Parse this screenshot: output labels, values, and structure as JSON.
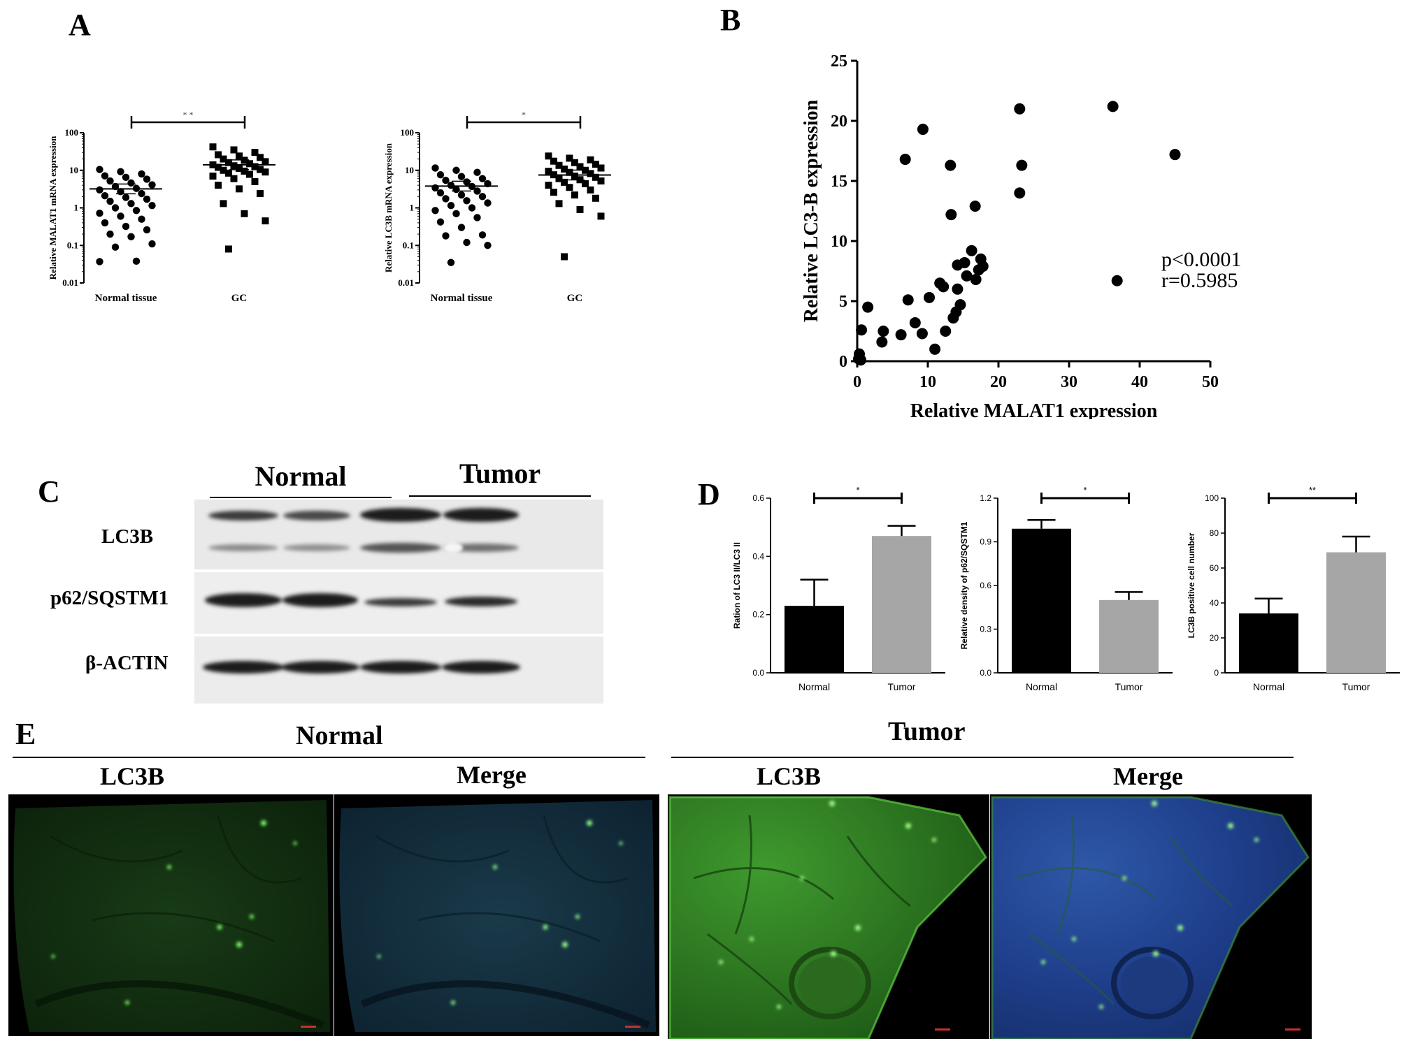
{
  "panels": {
    "A": "A",
    "B": "B",
    "C": "C",
    "D": "D",
    "E": "E"
  },
  "chart_data": [
    {
      "id": "A1",
      "type": "scatter",
      "ylabel": "Relative MALAT1 mRNA expression",
      "categories": [
        "Normal tissue",
        "GC"
      ],
      "yscale": "log",
      "ylim": [
        0.01,
        100
      ],
      "yticks": [
        "0.01",
        "0.1",
        "1",
        "10",
        "100"
      ],
      "means": [
        3.2,
        14
      ],
      "significance": "* *",
      "series": [
        {
          "values": [
            10.5,
            9.2,
            8.0,
            7.1,
            6.5,
            5.8,
            5.2,
            4.6,
            4.1,
            3.7,
            3.3,
            3.0,
            2.7,
            2.4,
            2.1,
            1.9,
            1.7,
            1.5,
            1.3,
            1.15,
            1.0,
            0.85,
            0.72,
            0.6,
            0.5,
            0.4,
            0.32,
            0.26,
            0.2,
            0.17,
            0.11,
            0.09,
            0.038,
            0.037
          ]
        },
        {
          "values": [
            42,
            35,
            30,
            26,
            24,
            22,
            20,
            18.5,
            17,
            16,
            15,
            14,
            13.2,
            12.5,
            12,
            11.2,
            10.5,
            10,
            9.5,
            9,
            8.4,
            7.8,
            7,
            6,
            5,
            4,
            3.2,
            2.4,
            1.3,
            0.7,
            0.45,
            0.08
          ]
        }
      ]
    },
    {
      "id": "A2",
      "type": "scatter",
      "ylabel": "Relative LC3B mRNA expression",
      "categories": [
        "Normal tissue",
        "GC"
      ],
      "yscale": "log",
      "ylim": [
        0.01,
        100
      ],
      "yticks": [
        "0.01",
        "0.1",
        "1",
        "10",
        "100"
      ],
      "means": [
        3.8,
        7.5
      ],
      "significance": "*",
      "series": [
        {
          "values": [
            11.5,
            10,
            8.8,
            7.6,
            6.8,
            6,
            5.4,
            4.9,
            4.4,
            4,
            3.7,
            3.4,
            3.1,
            2.8,
            2.5,
            2.2,
            2,
            1.75,
            1.55,
            1.35,
            1.15,
            1,
            0.85,
            0.7,
            0.55,
            0.42,
            0.3,
            0.19,
            0.18,
            0.12,
            0.1,
            0.035
          ]
        },
        {
          "values": [
            24,
            21,
            19,
            17.5,
            16,
            14.5,
            13.5,
            12.5,
            11.5,
            10.8,
            10,
            9.4,
            8.8,
            8.2,
            7.6,
            7,
            6.5,
            6,
            5.6,
            5.2,
            4.8,
            4.4,
            4,
            3.5,
            3,
            2.6,
            2.2,
            1.8,
            1.3,
            0.9,
            0.6,
            0.05
          ]
        }
      ]
    },
    {
      "id": "B",
      "type": "scatter",
      "xlabel": "Relative MALAT1 expression",
      "ylabel": "Relative LC3-B expression",
      "xlim": [
        0,
        50
      ],
      "ylim": [
        0,
        25
      ],
      "xticks": [
        "0",
        "10",
        "20",
        "30",
        "40",
        "50"
      ],
      "yticks": [
        "0",
        "5",
        "10",
        "15",
        "20",
        "25"
      ],
      "annotations": [
        "p<0.0001",
        "r=0.5985"
      ],
      "points": [
        [
          0.2,
          0.2
        ],
        [
          0.3,
          0.6
        ],
        [
          0.5,
          0.1
        ],
        [
          0.6,
          2.6
        ],
        [
          1.5,
          4.5
        ],
        [
          3.5,
          1.6
        ],
        [
          3.7,
          2.5
        ],
        [
          6.2,
          2.2
        ],
        [
          6.8,
          16.8
        ],
        [
          7.2,
          5.1
        ],
        [
          8.2,
          3.2
        ],
        [
          9.2,
          2.3
        ],
        [
          9.3,
          19.3
        ],
        [
          10.2,
          5.3
        ],
        [
          11,
          1.0
        ],
        [
          11.7,
          6.5
        ],
        [
          12.2,
          6.2
        ],
        [
          12.5,
          2.5
        ],
        [
          13.2,
          16.3
        ],
        [
          13.3,
          12.2
        ],
        [
          13.6,
          3.6
        ],
        [
          14,
          4.1
        ],
        [
          14.2,
          6.0
        ],
        [
          14.2,
          8.0
        ],
        [
          14.6,
          4.7
        ],
        [
          15.2,
          8.2
        ],
        [
          15.5,
          7.1
        ],
        [
          16.2,
          9.2
        ],
        [
          16.7,
          12.9
        ],
        [
          16.8,
          6.8
        ],
        [
          17.2,
          7.6
        ],
        [
          17.5,
          8.5
        ],
        [
          17.8,
          7.9
        ],
        [
          23,
          21.0
        ],
        [
          23,
          14.0
        ],
        [
          23.3,
          16.3
        ],
        [
          36.2,
          21.2
        ],
        [
          36.8,
          6.7
        ],
        [
          45,
          17.2
        ]
      ]
    },
    {
      "id": "D1",
      "type": "bar",
      "ylabel": "Ration of LC3 II/LC3 II",
      "categories": [
        "Normal",
        "Tumor"
      ],
      "values": [
        0.23,
        0.47
      ],
      "errors": [
        0.09,
        0.035
      ],
      "ylim": [
        0,
        0.6
      ],
      "yticks": [
        "0.0",
        "0.2",
        "0.4",
        "0.6"
      ],
      "significance": "*",
      "colors": [
        "#000000",
        "#a6a6a6"
      ]
    },
    {
      "id": "D2",
      "type": "bar",
      "ylabel": "Relative density of p62/SQSTM1",
      "categories": [
        "Normal",
        "Tumor"
      ],
      "values": [
        0.99,
        0.5
      ],
      "errors": [
        0.06,
        0.055
      ],
      "ylim": [
        0,
        1.2
      ],
      "yticks": [
        "0.0",
        "0.3",
        "0.6",
        "0.9",
        "1.2"
      ],
      "significance": "*",
      "colors": [
        "#000000",
        "#a6a6a6"
      ]
    },
    {
      "id": "D3",
      "type": "bar",
      "ylabel": "LC3B positive cell number",
      "categories": [
        "Normal",
        "Tumor"
      ],
      "values": [
        34,
        69
      ],
      "errors": [
        8.5,
        9
      ],
      "ylim": [
        0,
        100
      ],
      "yticks": [
        "0",
        "20",
        "40",
        "60",
        "80",
        "100"
      ],
      "significance": "**",
      "colors": [
        "#000000",
        "#a6a6a6"
      ]
    }
  ],
  "blot": {
    "group_labels": [
      "Normal",
      "Tumor"
    ],
    "rows": [
      "LC3B",
      "p62/SQSTM1",
      "β-ACTIN"
    ]
  },
  "fluorescence": {
    "normal_title": "Normal",
    "tumor_title": "Tumor",
    "normal_cols": [
      "LC3B",
      "Merge"
    ],
    "tumor_cols": [
      "LC3B",
      "Merge"
    ]
  }
}
